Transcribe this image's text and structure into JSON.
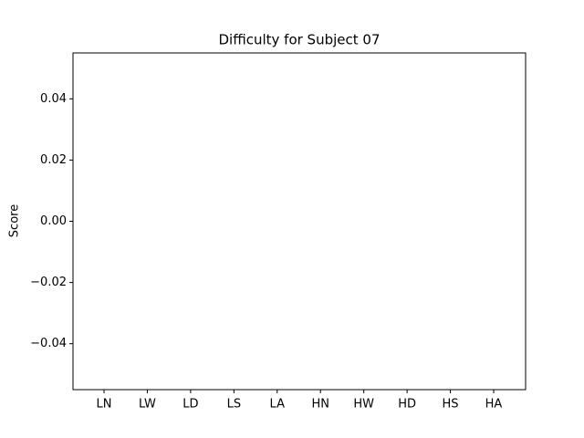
{
  "chart_data": {
    "type": "bar",
    "title": "Difficulty for Subject 07",
    "ylabel": "Score",
    "categories": [
      "LN",
      "LW",
      "LD",
      "LS",
      "LA",
      "HN",
      "HW",
      "HD",
      "HS",
      "HA"
    ],
    "values": [
      0,
      0,
      0,
      0,
      0,
      0,
      0,
      0,
      0,
      0
    ],
    "color": "#1f77b4",
    "ylim": [
      -0.055,
      0.055
    ],
    "yticks": [
      {
        "value": -0.04,
        "label": "−0.04"
      },
      {
        "value": -0.02,
        "label": "−0.02"
      },
      {
        "value": 0,
        "label": "0.00"
      },
      0.02,
      0.04
    ],
    "grid": false
  }
}
